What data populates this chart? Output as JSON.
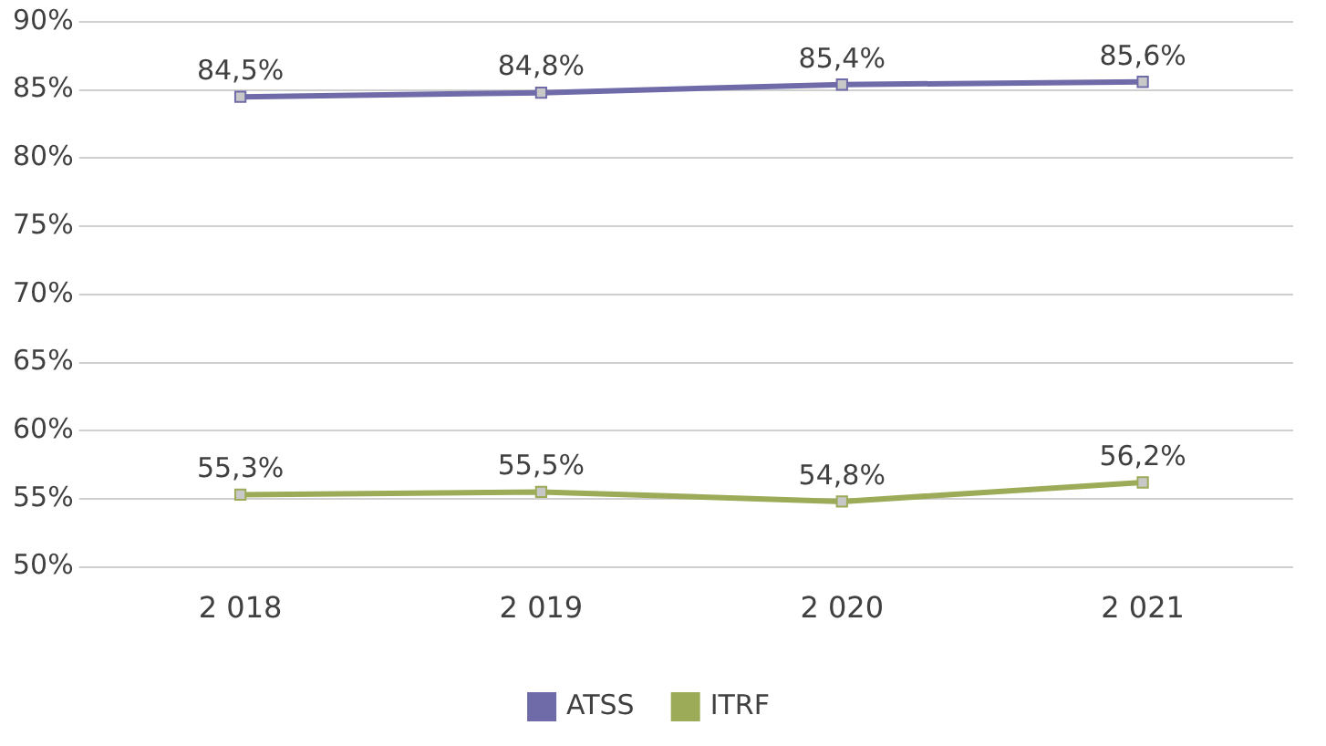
{
  "chart_data": {
    "type": "line",
    "categories": [
      "2 018",
      "2 019",
      "2 020",
      "2 021"
    ],
    "series": [
      {
        "name": "ATSS",
        "color": "#6f6ba8",
        "values": [
          84.5,
          84.8,
          85.4,
          85.6
        ],
        "value_labels": [
          "84,5%",
          "84,8%",
          "85,4%",
          "85,6%"
        ]
      },
      {
        "name": "ITRF",
        "color": "#9bab57",
        "values": [
          55.3,
          55.5,
          54.8,
          56.2
        ],
        "value_labels": [
          "55,3%",
          "55,5%",
          "54,8%",
          "56,2%"
        ]
      }
    ],
    "ylim": [
      50,
      90
    ],
    "yticks": [
      {
        "value": 50,
        "label": "50%"
      },
      {
        "value": 55,
        "label": "55%"
      },
      {
        "value": 60,
        "label": "60%"
      },
      {
        "value": 65,
        "label": "65%"
      },
      {
        "value": 70,
        "label": "70%"
      },
      {
        "value": 75,
        "label": "75%"
      },
      {
        "value": 80,
        "label": "80%"
      },
      {
        "value": 85,
        "label": "85%"
      },
      {
        "value": 90,
        "label": "90%"
      }
    ],
    "grid": "y",
    "legend": "bottom",
    "marker": "square",
    "line_style": "solid"
  }
}
